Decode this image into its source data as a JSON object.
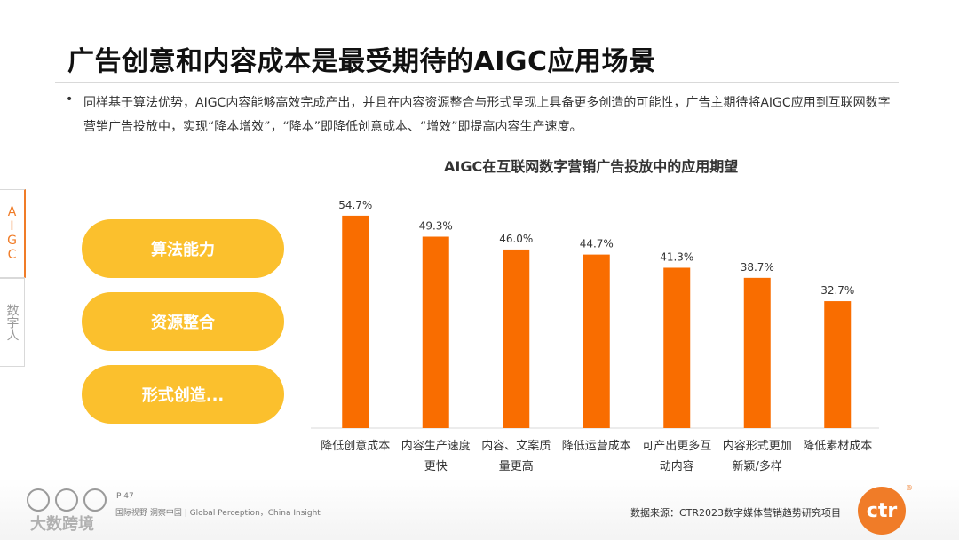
{
  "title": "广告创意和内容成本是最受期待的AIGC应用场景",
  "bullet_text": "同样基于算法优势，AIGC内容能够高效完成产出，并且在内容资源整合与形式呈现上具备更多创造的可能性，广告主期待将AIGC应用到互联网数字营销广告投放中，实现“降本增效”，“降本”即降低创意成本、“增效”即提高内容生产速度。",
  "side_tabs": [
    "AIGC",
    "数字人"
  ],
  "pills": [
    "算法能力",
    "资源整合",
    "形式创造..."
  ],
  "footer": {
    "page": "P 47",
    "slogan": "国际视野  洞察中国 | Global Perception，China Insight",
    "source": "数据来源：CTR2023数字媒体营销趋势研究项目",
    "logo_text": "ctr",
    "watermark": "大数跨境"
  },
  "colors": {
    "bar": "#f96d00",
    "pill": "#fbc02d",
    "accent": "#f07c28"
  },
  "chart_data": {
    "type": "bar",
    "title": "AIGC在互联网数字营销广告投放中的应用期望",
    "categories": [
      "降低创意成本",
      "内容生产速度更快",
      "内容、文案质量更高",
      "降低运营成本",
      "可产出更多互动内容",
      "内容形式更加新颖/多样",
      "降低素材成本"
    ],
    "category_lines": [
      [
        "降低创意成本"
      ],
      [
        "内容生产速度",
        "更快"
      ],
      [
        "内容、文案质",
        "量更高"
      ],
      [
        "降低运营成本"
      ],
      [
        "可产出更多互",
        "动内容"
      ],
      [
        "内容形式更加",
        "新颖/多样"
      ],
      [
        "降低素材成本"
      ]
    ],
    "values": [
      54.7,
      49.3,
      46.0,
      44.7,
      41.3,
      38.7,
      32.7
    ],
    "value_labels": [
      "54.7%",
      "49.3%",
      "46.0%",
      "44.7%",
      "41.3%",
      "38.7%",
      "32.7%"
    ],
    "ylim": [
      0,
      60
    ],
    "grid": false
  }
}
